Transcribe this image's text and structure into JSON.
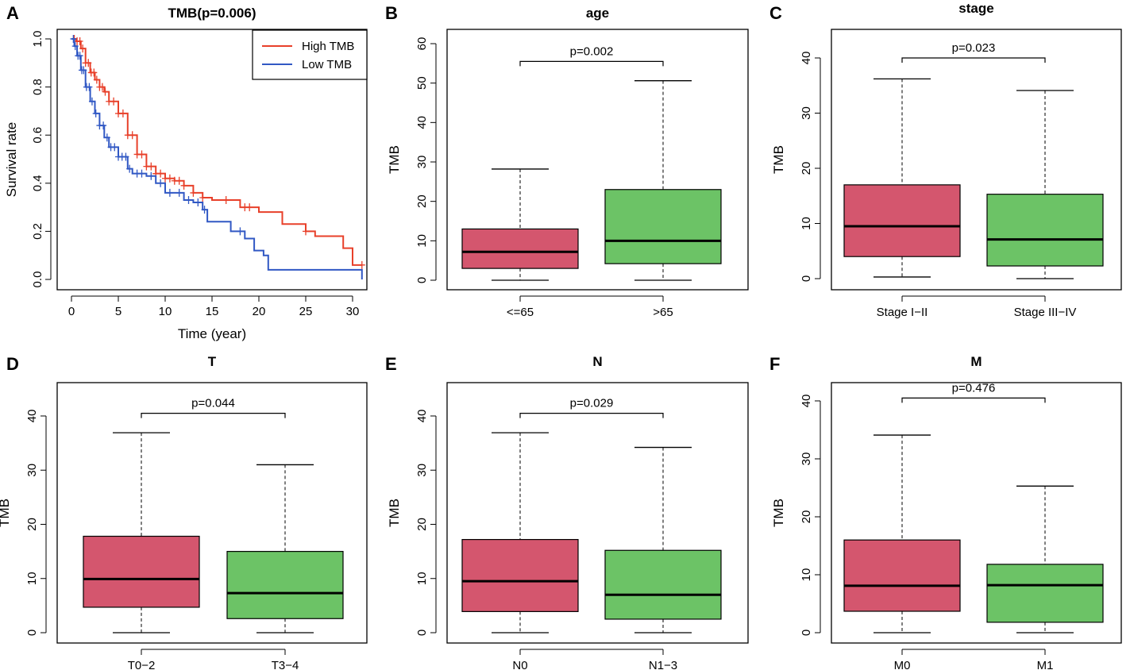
{
  "figure": {
    "colors": {
      "high_tmb": "#e8402a",
      "low_tmb": "#3158c4",
      "box_group1": "#d4566e",
      "box_group2": "#6cc366",
      "frame": "#000000"
    }
  },
  "chart_data": [
    {
      "panel": "A",
      "type": "line",
      "title": "TMB(p=0.006)",
      "xlabel": "Time (year)",
      "ylabel": "Survival rate",
      "xlim": [
        0,
        31
      ],
      "ylim": [
        0,
        1
      ],
      "xticks": [
        0,
        5,
        10,
        15,
        20,
        25,
        30
      ],
      "yticks": [
        0.0,
        0.2,
        0.4,
        0.6,
        0.8,
        1.0
      ],
      "xtick_labels": [
        "0",
        "5",
        "10",
        "15",
        "20",
        "25",
        "30"
      ],
      "ytick_labels": [
        "0.0",
        "0.2",
        "0.4",
        "0.6",
        "0.8",
        "1.0"
      ],
      "legend": [
        "High TMB",
        "Low TMB"
      ],
      "legend_position": "top-right",
      "series": [
        {
          "name": "High TMB",
          "points": [
            [
              0,
              1.0
            ],
            [
              0.5,
              0.99
            ],
            [
              1,
              0.96
            ],
            [
              1.5,
              0.9
            ],
            [
              2,
              0.86
            ],
            [
              2.5,
              0.83
            ],
            [
              3,
              0.8
            ],
            [
              3.5,
              0.78
            ],
            [
              4,
              0.74
            ],
            [
              5,
              0.69
            ],
            [
              6,
              0.6
            ],
            [
              7,
              0.52
            ],
            [
              8,
              0.47
            ],
            [
              9,
              0.44
            ],
            [
              10,
              0.42
            ],
            [
              11,
              0.41
            ],
            [
              12,
              0.39
            ],
            [
              13,
              0.36
            ],
            [
              14,
              0.34
            ],
            [
              15,
              0.33
            ],
            [
              17,
              0.33
            ],
            [
              18,
              0.3
            ],
            [
              20,
              0.28
            ],
            [
              22,
              0.28
            ],
            [
              22.5,
              0.23
            ],
            [
              25,
              0.2
            ],
            [
              26,
              0.18
            ],
            [
              28,
              0.18
            ],
            [
              29,
              0.13
            ],
            [
              30,
              0.06
            ],
            [
              31,
              0.06
            ]
          ],
          "censor_x": [
            0.3,
            0.6,
            0.9,
            1.2,
            1.5,
            1.8,
            2.1,
            2.4,
            2.7,
            3,
            3.3,
            3.6,
            4,
            4.5,
            5,
            5.5,
            6,
            6.5,
            7,
            7.5,
            8,
            8.5,
            9,
            9.5,
            10,
            10.5,
            11,
            11.5,
            12,
            13,
            14,
            16.5,
            18.5,
            19,
            25,
            31
          ]
        },
        {
          "name": "Low TMB",
          "points": [
            [
              0,
              1.0
            ],
            [
              0.3,
              0.97
            ],
            [
              0.6,
              0.93
            ],
            [
              1,
              0.87
            ],
            [
              1.5,
              0.8
            ],
            [
              2,
              0.74
            ],
            [
              2.5,
              0.69
            ],
            [
              3,
              0.64
            ],
            [
              3.5,
              0.59
            ],
            [
              4,
              0.55
            ],
            [
              5,
              0.51
            ],
            [
              6,
              0.46
            ],
            [
              6.5,
              0.44
            ],
            [
              8,
              0.43
            ],
            [
              9,
              0.4
            ],
            [
              10,
              0.36
            ],
            [
              12,
              0.33
            ],
            [
              13,
              0.32
            ],
            [
              14,
              0.29
            ],
            [
              14.5,
              0.24
            ],
            [
              16,
              0.24
            ],
            [
              17,
              0.2
            ],
            [
              18.5,
              0.17
            ],
            [
              19.5,
              0.12
            ],
            [
              20.5,
              0.1
            ],
            [
              21,
              0.04
            ],
            [
              31,
              0.04
            ],
            [
              31,
              0.0
            ]
          ],
          "censor_x": [
            0.2,
            0.4,
            0.7,
            0.9,
            1.1,
            1.3,
            1.6,
            1.9,
            2.2,
            2.6,
            3,
            3.4,
            3.8,
            4.2,
            4.6,
            5,
            5.4,
            5.8,
            6.2,
            7,
            7.5,
            8.5,
            9.5,
            10.5,
            11.5,
            12.5,
            13.5,
            14.2,
            18
          ]
        }
      ]
    },
    {
      "panel": "B",
      "type": "box",
      "title": "age",
      "ylabel": "TMB",
      "ylim": [
        0,
        60
      ],
      "yticks": [
        0,
        10,
        20,
        30,
        40,
        50,
        60
      ],
      "ytick_labels": [
        "0",
        "10",
        "20",
        "30",
        "40",
        "50",
        "60"
      ],
      "categories": [
        "<=65",
        ">65"
      ],
      "pvalue": "p=0.002",
      "bracket_y": 55.5,
      "boxes": [
        {
          "min": 0,
          "q1": 3,
          "median": 7.2,
          "q3": 13,
          "max": 28.2
        },
        {
          "min": 0,
          "q1": 4.2,
          "median": 10,
          "q3": 23,
          "max": 50.6
        }
      ]
    },
    {
      "panel": "C",
      "type": "box",
      "title": "stage",
      "ylabel": "TMB",
      "ylim": [
        0,
        40
      ],
      "yticks": [
        0,
        10,
        20,
        30,
        40
      ],
      "ytick_labels": [
        "0",
        "10",
        "20",
        "30",
        "40"
      ],
      "categories": [
        "Stage I−II",
        "Stage III−IV"
      ],
      "pvalue": "p=0.023",
      "bracket_y": 40,
      "boxes": [
        {
          "min": 0.3,
          "q1": 4,
          "median": 9.5,
          "q3": 17,
          "max": 36.2
        },
        {
          "min": 0,
          "q1": 2.3,
          "median": 7.1,
          "q3": 15.3,
          "max": 34.1
        }
      ]
    },
    {
      "panel": "D",
      "type": "box",
      "title": "T",
      "ylabel": "TMB",
      "ylim": [
        0,
        40
      ],
      "yticks": [
        0,
        10,
        20,
        30,
        40
      ],
      "ytick_labels": [
        "0",
        "10",
        "20",
        "30",
        "40"
      ],
      "categories": [
        "T0−2",
        "T3−4"
      ],
      "pvalue": "p=0.044",
      "bracket_y": 40.5,
      "boxes": [
        {
          "min": 0,
          "q1": 4.7,
          "median": 9.9,
          "q3": 17.8,
          "max": 36.9
        },
        {
          "min": 0,
          "q1": 2.6,
          "median": 7.3,
          "q3": 15,
          "max": 31
        }
      ]
    },
    {
      "panel": "E",
      "type": "box",
      "title": "N",
      "ylabel": "TMB",
      "ylim": [
        0,
        40
      ],
      "yticks": [
        0,
        10,
        20,
        30,
        40
      ],
      "ytick_labels": [
        "0",
        "10",
        "20",
        "30",
        "40"
      ],
      "categories": [
        "N0",
        "N1−3"
      ],
      "pvalue": "p=0.029",
      "bracket_y": 40.5,
      "boxes": [
        {
          "min": 0,
          "q1": 3.9,
          "median": 9.5,
          "q3": 17.2,
          "max": 36.9
        },
        {
          "min": 0,
          "q1": 2.5,
          "median": 7,
          "q3": 15.2,
          "max": 34.2
        }
      ]
    },
    {
      "panel": "F",
      "type": "box",
      "title": "M",
      "ylabel": "TMB",
      "ylim": [
        0,
        40
      ],
      "yticks": [
        0,
        10,
        20,
        30,
        40
      ],
      "ytick_labels": [
        "0",
        "10",
        "20",
        "30",
        "40"
      ],
      "categories": [
        "M0",
        "M1"
      ],
      "pvalue": "p=0.476",
      "bracket_y": 40.5,
      "boxes": [
        {
          "min": 0,
          "q1": 3.7,
          "median": 8.1,
          "q3": 16,
          "max": 34.1
        },
        {
          "min": 0,
          "q1": 1.8,
          "median": 8.2,
          "q3": 11.8,
          "max": 25.3
        }
      ]
    }
  ]
}
